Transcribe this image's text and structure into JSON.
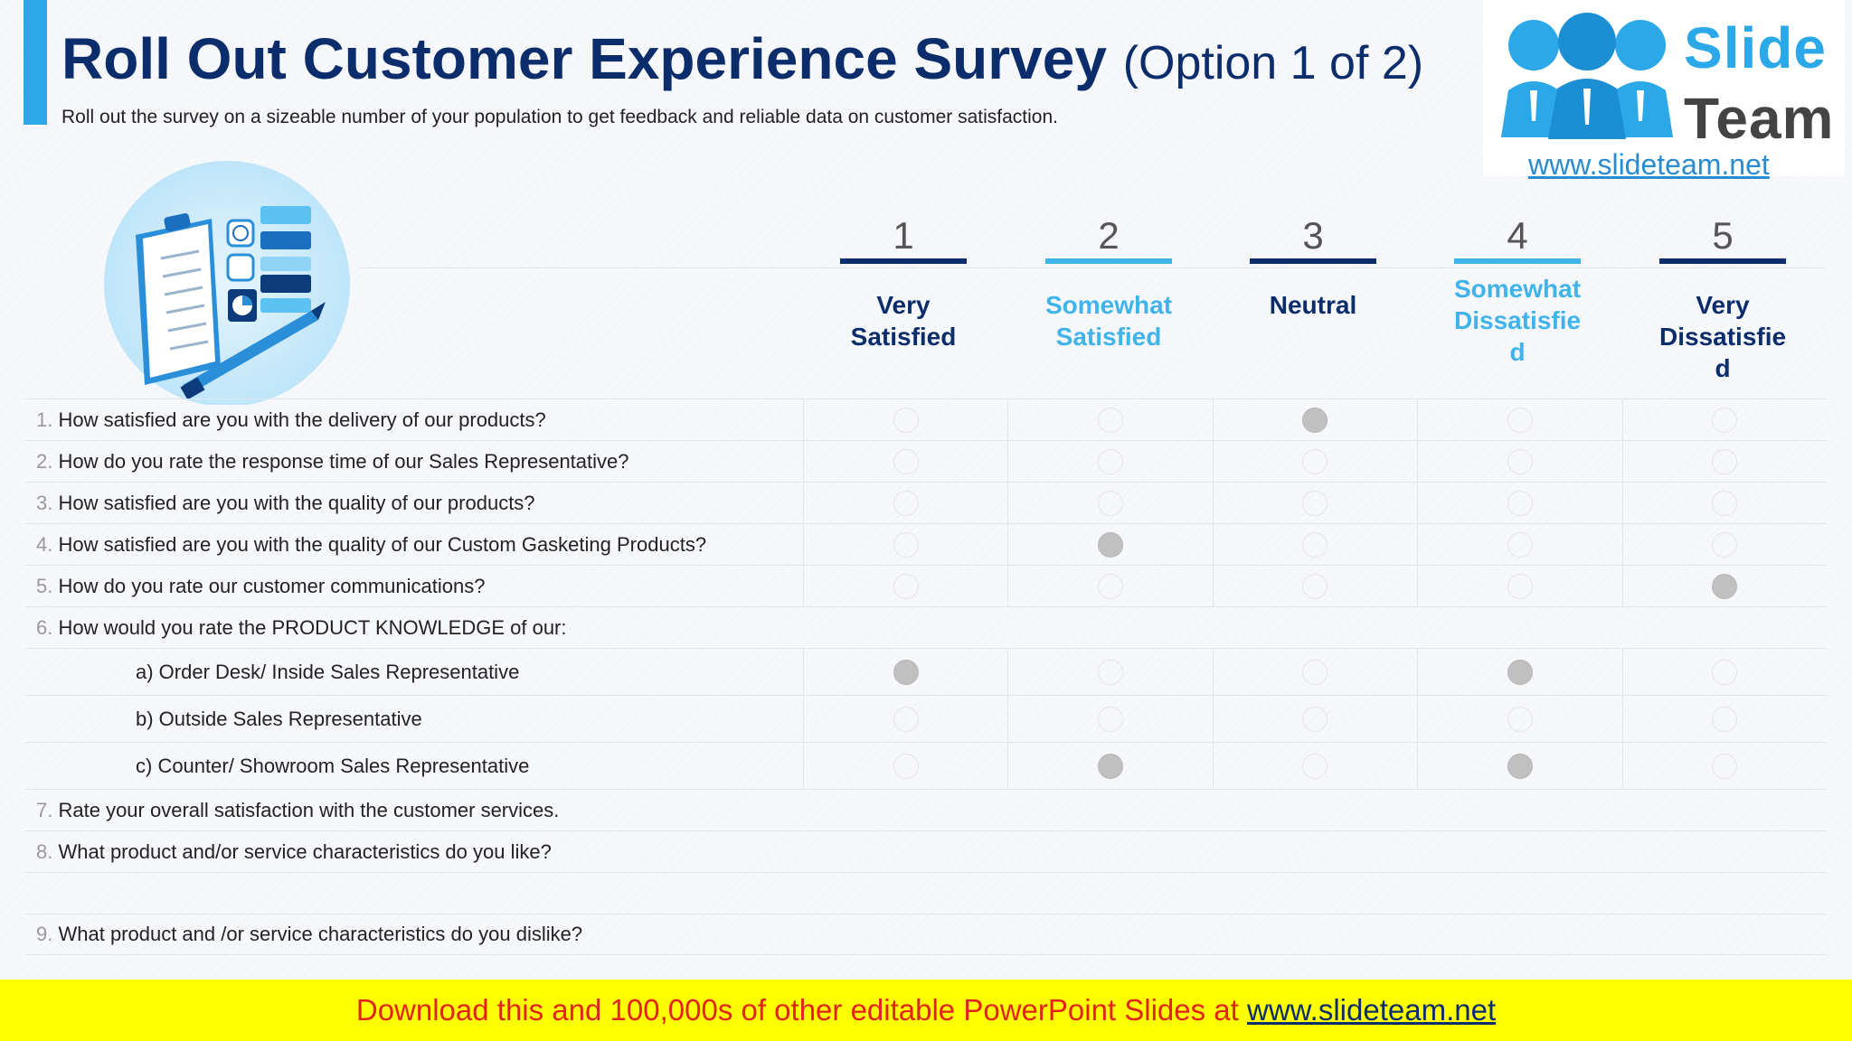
{
  "header": {
    "title": "Roll Out Customer Experience Survey",
    "title_suffix": "(Option 1 of 2)",
    "subtitle": "Roll out the survey on a sizeable number of your population to get feedback and reliable data on customer satisfaction."
  },
  "logo": {
    "line1": "Slide",
    "line2": "Team",
    "url": "www.slideteam.net",
    "icon": "people-group-icon"
  },
  "illustration": {
    "icon": "survey-clipboard-illustration"
  },
  "scale": [
    {
      "number": "1",
      "label": "Very Satisfied",
      "color": "#0c2d6b"
    },
    {
      "number": "2",
      "label": "Somewhat Satisfied",
      "color": "#3fb3ea"
    },
    {
      "number": "3",
      "label": "Neutral",
      "color": "#0c2d6b"
    },
    {
      "number": "4",
      "label": "Somewhat Dissatisfie d",
      "color": "#3fb3ea"
    },
    {
      "number": "5",
      "label": "Very Dissatisfie d",
      "color": "#0c2d6b"
    }
  ],
  "questions": [
    {
      "num": "1.",
      "text": "How satisfied are you with the delivery of our products?",
      "selected": 3
    },
    {
      "num": "2.",
      "text": "How do you rate the response time of our Sales Representative?",
      "selected": 0
    },
    {
      "num": "3.",
      "text": "How satisfied are you with the quality of our products?",
      "selected": 0
    },
    {
      "num": "4.",
      "text": "How satisfied are you with the quality of our Custom Gasketing Products?",
      "selected": 2
    },
    {
      "num": "5.",
      "text": "How do you rate our customer communications?",
      "selected": 5
    },
    {
      "num": "6.",
      "text": "How would you rate the PRODUCT KNOWLEDGE of our:"
    },
    {
      "text": "a) Order Desk/ Inside Sales Representative",
      "selected": [
        1,
        4
      ]
    },
    {
      "text": "b) Outside Sales Representative",
      "selected": []
    },
    {
      "text": "c) Counter/ Showroom Sales Representative",
      "selected": [
        2,
        4
      ]
    },
    {
      "num": "7.",
      "text": "Rate your overall satisfaction with the customer services."
    },
    {
      "num": "8.",
      "text": "What product and/or service characteristics do you like?"
    },
    {
      "text": ""
    },
    {
      "num": "9.",
      "text": "What product and /or service characteristics do you dislike?"
    }
  ],
  "footer": {
    "text": "Download this and 100,000s of other editable PowerPoint Slides at ",
    "link": "www.slideteam.net"
  },
  "colors": {
    "accent": "#2aa8e8",
    "navy": "#0c2d6b",
    "light_blue": "#3fb3ea",
    "footer_bg": "#ffff00",
    "footer_text": "#e2231a"
  }
}
